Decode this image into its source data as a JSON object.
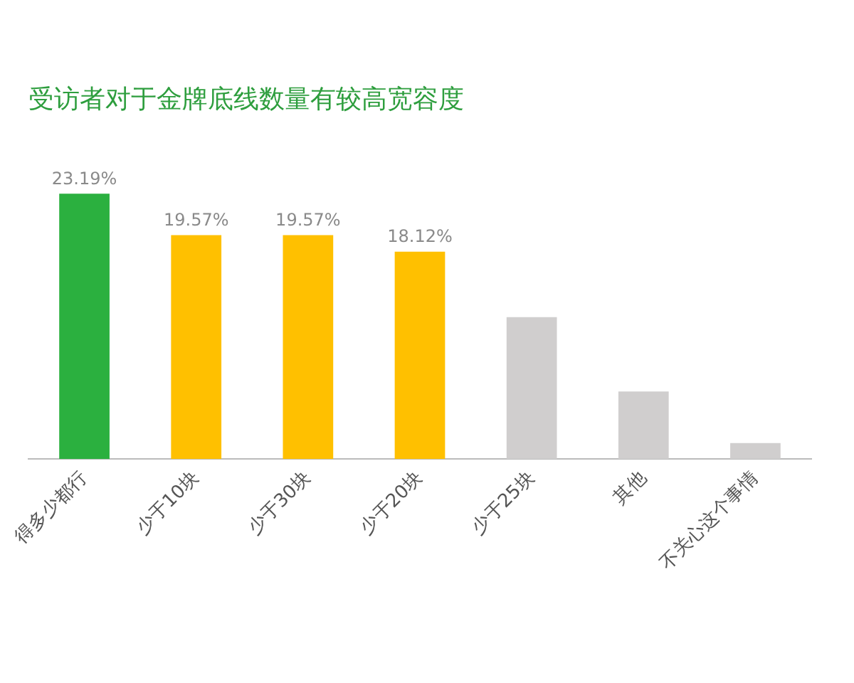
{
  "chart_data": {
    "type": "bar",
    "title": "受访者对于金牌底线数量有较高宽容度",
    "categories": [
      "得多少都行",
      "少于10块",
      "少于30块",
      "少于20块",
      "少于25块",
      "其他",
      "不关心这个事情"
    ],
    "values": [
      23.19,
      19.57,
      19.57,
      18.12,
      12.4,
      5.9,
      1.4
    ],
    "colors": [
      "#2bb03f",
      "#ffc000",
      "#ffc000",
      "#ffc000",
      "#d0cece",
      "#d0cece",
      "#d0cece"
    ],
    "value_labels": [
      "23.19%",
      "19.57%",
      "19.57%",
      "18.12%",
      null,
      null,
      null
    ],
    "grid": false,
    "legend": false
  }
}
